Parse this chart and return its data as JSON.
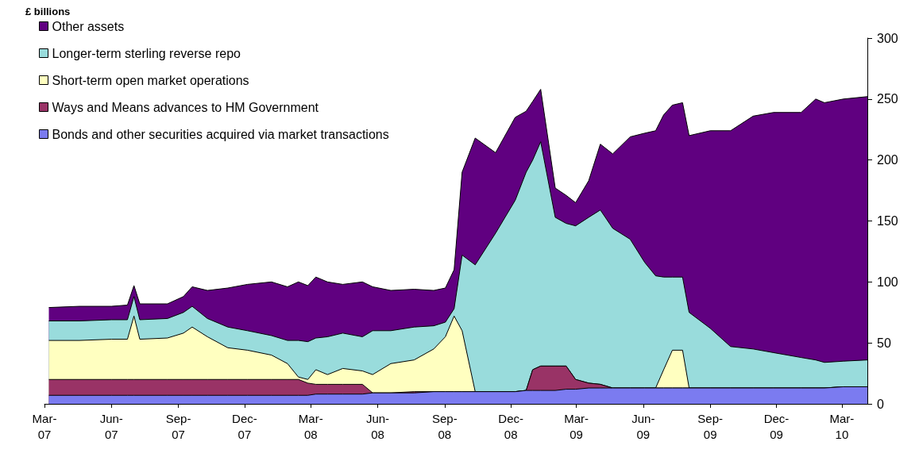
{
  "chart_data": {
    "type": "area",
    "ylabel": "£ billions",
    "stacked": true,
    "legend": "top left",
    "grid": false,
    "marker": "none",
    "xlim": [
      "2007-03-01",
      "2010-04-05"
    ],
    "xticks": [
      {
        "value": "2007-03",
        "label": "Mar-\n07"
      },
      {
        "value": "2007-06",
        "label": "Jun-\n07"
      },
      {
        "value": "2007-09",
        "label": "Sep-\n07"
      },
      {
        "value": "2007-12",
        "label": "Dec-\n07"
      },
      {
        "value": "2008-03",
        "label": "Mar-\n08"
      },
      {
        "value": "2008-06",
        "label": "Jun-\n08"
      },
      {
        "value": "2008-09",
        "label": "Sep-\n08"
      },
      {
        "value": "2008-12",
        "label": "Dec-\n08"
      },
      {
        "value": "2009-03",
        "label": "Mar-\n09"
      },
      {
        "value": "2009-06",
        "label": "Jun-\n09"
      },
      {
        "value": "2009-09",
        "label": "Sep-\n09"
      },
      {
        "value": "2009-12",
        "label": "Dec-\n09"
      },
      {
        "value": "2010-03",
        "label": "Mar-\n10"
      }
    ],
    "ylim": [
      0,
      300
    ],
    "yticks": [
      0,
      50,
      100,
      150,
      200,
      250,
      300
    ],
    "x": [
      "2007-03-07",
      "2007-04-18",
      "2007-06-01",
      "2007-06-23",
      "2007-07-02",
      "2007-07-10",
      "2007-08-17",
      "2007-09-08",
      "2007-09-20",
      "2007-10-11",
      "2007-11-08",
      "2007-12-05",
      "2008-01-07",
      "2008-01-29",
      "2008-02-13",
      "2008-02-26",
      "2008-03-08",
      "2008-03-24",
      "2008-04-14",
      "2008-05-11",
      "2008-05-25",
      "2008-06-19",
      "2008-07-21",
      "2008-08-17",
      "2008-09-02",
      "2008-09-14",
      "2008-09-25",
      "2008-10-13",
      "2008-11-10",
      "2008-12-07",
      "2008-12-22",
      "2008-12-31",
      "2009-01-11",
      "2009-01-31",
      "2009-02-15",
      "2009-02-28",
      "2009-03-18",
      "2009-04-03",
      "2009-04-20",
      "2009-05-14",
      "2009-06-03",
      "2009-06-18",
      "2009-06-29",
      "2009-07-11",
      "2009-07-25",
      "2009-08-03",
      "2009-09-01",
      "2009-09-29",
      "2009-10-30",
      "2009-11-27",
      "2010-01-04",
      "2010-01-24",
      "2010-02-05",
      "2010-03-03",
      "2010-04-05"
    ],
    "series": [
      {
        "name": "Bonds and other securities acquired via market transactions",
        "color": "#7b7bf0",
        "values": [
          7,
          7,
          7,
          7,
          7,
          7,
          7,
          7,
          7,
          7,
          7,
          7,
          7,
          7,
          7,
          7,
          8,
          8,
          8,
          8,
          9,
          9,
          9,
          10,
          10,
          10,
          10,
          10,
          10,
          10,
          11,
          11,
          11,
          11,
          12,
          12,
          13,
          13,
          13,
          13,
          13,
          13,
          13,
          13,
          13,
          13,
          13,
          13,
          13,
          13,
          13,
          13,
          13,
          14,
          14
        ]
      },
      {
        "name": "Ways and Means advances to HM Government",
        "color": "#993366",
        "values": [
          13,
          13,
          13,
          13,
          13,
          13,
          13,
          13,
          13,
          13,
          13,
          13,
          13,
          13,
          13,
          10,
          8,
          8,
          8,
          8,
          0,
          0,
          1,
          0,
          0,
          0,
          0,
          0,
          0,
          0,
          0,
          17,
          20,
          20,
          19,
          8,
          4,
          3,
          0,
          0,
          0,
          0,
          0,
          0,
          0,
          0,
          0,
          0,
          0,
          0,
          0,
          0,
          0,
          0,
          0
        ]
      },
      {
        "name": "Short-term open market operations",
        "color": "#ffffc0",
        "values": [
          32,
          32,
          33,
          33,
          52,
          33,
          34,
          38,
          43,
          35,
          26,
          24,
          20,
          13,
          2,
          3,
          12,
          8,
          13,
          11,
          15,
          24,
          26,
          35,
          45,
          62,
          50,
          0,
          0,
          0,
          0,
          0,
          0,
          0,
          0,
          0,
          0,
          0,
          0,
          0,
          0,
          0,
          15,
          31,
          31,
          0,
          0,
          0,
          0,
          0,
          0,
          0,
          0,
          0,
          0
        ]
      },
      {
        "name": "Longer-term sterling reverse repo",
        "color": "#99dcdc",
        "values": [
          16,
          16,
          16,
          16,
          16,
          16,
          16,
          17,
          17,
          15,
          17,
          16,
          16,
          19,
          30,
          31,
          26,
          31,
          29,
          28,
          36,
          27,
          27,
          19,
          12,
          6,
          62,
          104,
          130,
          157,
          179,
          172,
          184,
          122,
          117,
          126,
          136,
          143,
          131,
          122,
          103,
          92,
          76,
          60,
          60,
          62,
          49,
          34,
          32,
          29,
          25,
          23,
          21,
          21,
          22
        ]
      },
      {
        "name": "Other assets",
        "color": "#600080",
        "values": [
          11,
          12,
          11,
          12,
          9,
          13,
          12,
          13,
          16,
          23,
          32,
          38,
          44,
          44,
          48,
          46,
          50,
          45,
          40,
          45,
          36,
          33,
          31,
          29,
          28,
          32,
          68,
          104,
          66,
          68,
          50,
          48,
          43,
          24,
          23,
          19,
          30,
          54,
          61,
          84,
          106,
          119,
          133,
          141,
          143,
          145,
          162,
          177,
          191,
          197,
          201,
          214,
          213,
          215,
          216
        ]
      }
    ]
  }
}
